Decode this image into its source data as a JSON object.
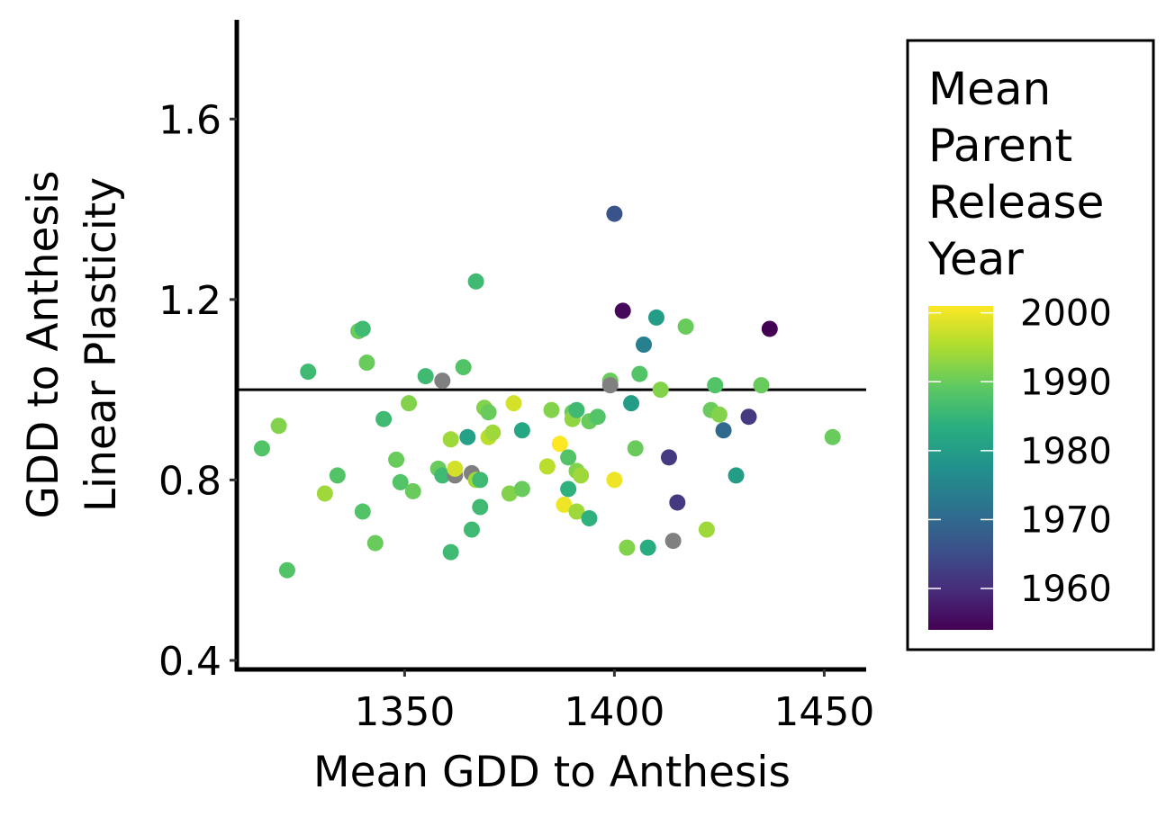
{
  "chart_data": {
    "type": "scatter",
    "xlabel": "Mean GDD to Anthesis",
    "ylabel": [
      "GDD to Anthesis",
      "Linear Plasticity"
    ],
    "xlim": [
      1310,
      1460
    ],
    "ylim": [
      0.38,
      1.82
    ],
    "xticks": [
      1350,
      1400,
      1450
    ],
    "yticks": [
      0.4,
      0.8,
      1.2,
      1.6
    ],
    "xtick_labels": [
      "1350",
      "1400",
      "1450"
    ],
    "ytick_labels": [
      "0.4",
      "0.8",
      "1.2",
      "1.6"
    ],
    "reference_line": {
      "y": 1.0
    },
    "grid": false,
    "legend": {
      "title": [
        "Mean",
        "Parent",
        "Release",
        "Year"
      ],
      "type": "colorbar",
      "position": "right",
      "range": [
        1954,
        2001
      ],
      "ticks": [
        1960,
        1970,
        1980,
        1990,
        2000
      ],
      "tick_labels": [
        "1960",
        "1970",
        "1980",
        "1990",
        "2000"
      ],
      "colormap": "viridis",
      "na_color": "#808080"
    },
    "points": [
      {
        "x": 1316,
        "y": 0.87,
        "year": 1988
      },
      {
        "x": 1320,
        "y": 0.92,
        "year": 1992
      },
      {
        "x": 1322,
        "y": 0.6,
        "year": 1988
      },
      {
        "x": 1327,
        "y": 1.04,
        "year": 1986
      },
      {
        "x": 1331,
        "y": 0.77,
        "year": 1994
      },
      {
        "x": 1334,
        "y": 0.81,
        "year": 1988
      },
      {
        "x": 1339,
        "y": 1.13,
        "year": 1990
      },
      {
        "x": 1340,
        "y": 1.135,
        "year": 1986
      },
      {
        "x": 1340,
        "y": 0.73,
        "year": 1988
      },
      {
        "x": 1341,
        "y": 1.06,
        "year": 1990
      },
      {
        "x": 1343,
        "y": 0.66,
        "year": 1990
      },
      {
        "x": 1345,
        "y": 0.935,
        "year": 1986
      },
      {
        "x": 1348,
        "y": 0.845,
        "year": 1990
      },
      {
        "x": 1349,
        "y": 0.795,
        "year": 1988
      },
      {
        "x": 1351,
        "y": 0.97,
        "year": 1992
      },
      {
        "x": 1352,
        "y": 0.775,
        "year": 1990
      },
      {
        "x": 1355,
        "y": 1.03,
        "year": 1986
      },
      {
        "x": 1358,
        "y": 0.825,
        "year": 1990
      },
      {
        "x": 1359,
        "y": 1.02,
        "year": null
      },
      {
        "x": 1359,
        "y": 0.81,
        "year": 1986
      },
      {
        "x": 1361,
        "y": 0.89,
        "year": 1994
      },
      {
        "x": 1361,
        "y": 0.64,
        "year": 1986
      },
      {
        "x": 1362,
        "y": 0.81,
        "year": null
      },
      {
        "x": 1362,
        "y": 0.825,
        "year": 1998
      },
      {
        "x": 1364,
        "y": 1.05,
        "year": 1988
      },
      {
        "x": 1365,
        "y": 0.895,
        "year": 1981
      },
      {
        "x": 1366,
        "y": 0.815,
        "year": null
      },
      {
        "x": 1366,
        "y": 0.69,
        "year": 1986
      },
      {
        "x": 1367,
        "y": 1.24,
        "year": 1986
      },
      {
        "x": 1367,
        "y": 0.8,
        "year": 1994
      },
      {
        "x": 1368,
        "y": 0.8,
        "year": 1986
      },
      {
        "x": 1368,
        "y": 0.74,
        "year": 1986
      },
      {
        "x": 1369,
        "y": 0.96,
        "year": 1992
      },
      {
        "x": 1370,
        "y": 0.95,
        "year": 1990
      },
      {
        "x": 1370,
        "y": 0.895,
        "year": 1996
      },
      {
        "x": 1371,
        "y": 0.905,
        "year": 1994
      },
      {
        "x": 1375,
        "y": 0.77,
        "year": 1992
      },
      {
        "x": 1376,
        "y": 0.97,
        "year": 1998
      },
      {
        "x": 1378,
        "y": 0.91,
        "year": 1982
      },
      {
        "x": 1378,
        "y": 0.78,
        "year": 1990
      },
      {
        "x": 1384,
        "y": 0.83,
        "year": 1996
      },
      {
        "x": 1385,
        "y": 0.955,
        "year": 1992
      },
      {
        "x": 1387,
        "y": 0.88,
        "year": 2001
      },
      {
        "x": 1388,
        "y": 0.745,
        "year": 2000
      },
      {
        "x": 1389,
        "y": 0.85,
        "year": 1988
      },
      {
        "x": 1389,
        "y": 0.78,
        "year": 1984
      },
      {
        "x": 1390,
        "y": 0.95,
        "year": 1990
      },
      {
        "x": 1390,
        "y": 0.935,
        "year": 1993
      },
      {
        "x": 1391,
        "y": 0.955,
        "year": 1986
      },
      {
        "x": 1391,
        "y": 0.73,
        "year": 1994
      },
      {
        "x": 1391,
        "y": 0.82,
        "year": 1992
      },
      {
        "x": 1392,
        "y": 0.81,
        "year": 1994
      },
      {
        "x": 1394,
        "y": 0.93,
        "year": 1990
      },
      {
        "x": 1394,
        "y": 0.715,
        "year": 1984
      },
      {
        "x": 1396,
        "y": 0.94,
        "year": 1988
      },
      {
        "x": 1399,
        "y": 1.02,
        "year": 1990
      },
      {
        "x": 1399,
        "y": 1.01,
        "year": null
      },
      {
        "x": 1400,
        "y": 1.39,
        "year": 1966
      },
      {
        "x": 1400,
        "y": 0.8,
        "year": 2000
      },
      {
        "x": 1402,
        "y": 1.175,
        "year": 1955
      },
      {
        "x": 1403,
        "y": 0.65,
        "year": 1992
      },
      {
        "x": 1404,
        "y": 0.97,
        "year": 1980
      },
      {
        "x": 1405,
        "y": 0.87,
        "year": 1990
      },
      {
        "x": 1406,
        "y": 1.035,
        "year": 1988
      },
      {
        "x": 1407,
        "y": 1.1,
        "year": 1974
      },
      {
        "x": 1408,
        "y": 0.65,
        "year": 1983
      },
      {
        "x": 1410,
        "y": 1.16,
        "year": 1980
      },
      {
        "x": 1411,
        "y": 1.0,
        "year": 1992
      },
      {
        "x": 1413,
        "y": 0.85,
        "year": 1962
      },
      {
        "x": 1414,
        "y": 0.665,
        "year": null
      },
      {
        "x": 1415,
        "y": 0.75,
        "year": 1962
      },
      {
        "x": 1417,
        "y": 1.14,
        "year": 1990
      },
      {
        "x": 1422,
        "y": 0.69,
        "year": 1994
      },
      {
        "x": 1423,
        "y": 0.955,
        "year": 1990
      },
      {
        "x": 1424,
        "y": 1.01,
        "year": 1988
      },
      {
        "x": 1425,
        "y": 0.945,
        "year": 1992
      },
      {
        "x": 1426,
        "y": 0.91,
        "year": 1970
      },
      {
        "x": 1429,
        "y": 0.81,
        "year": 1980
      },
      {
        "x": 1432,
        "y": 0.94,
        "year": 1962
      },
      {
        "x": 1435,
        "y": 1.01,
        "year": 1990
      },
      {
        "x": 1437,
        "y": 1.135,
        "year": 1954
      },
      {
        "x": 1452,
        "y": 0.895,
        "year": 1990
      }
    ]
  }
}
